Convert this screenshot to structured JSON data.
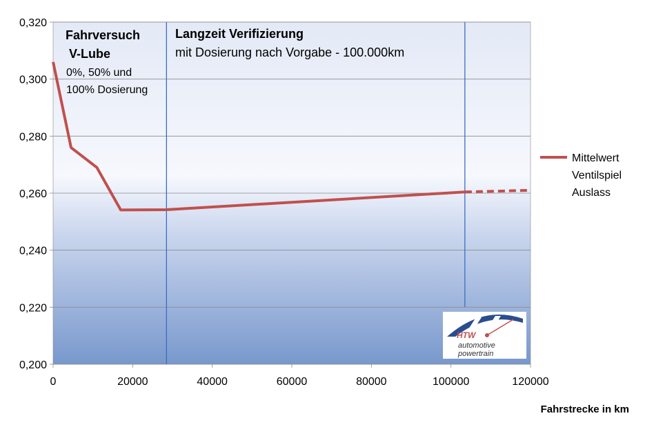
{
  "chart_data": {
    "type": "line",
    "xlabel": "Fahrstrecke in km",
    "ylabel": "",
    "xlim": [
      0,
      120000
    ],
    "ylim": [
      0.2,
      0.32
    ],
    "x_ticks": [
      0,
      20000,
      40000,
      60000,
      80000,
      100000,
      120000
    ],
    "x_tick_labels": [
      "0",
      "20000",
      "40000",
      "60000",
      "80000",
      "100000",
      "120000"
    ],
    "y_ticks": [
      0.2,
      0.22,
      0.24,
      0.26,
      0.28,
      0.3,
      0.32
    ],
    "y_tick_labels": [
      "0,200",
      "0,220",
      "0,240",
      "0,260",
      "0,280",
      "0,300",
      "0,320"
    ],
    "grid": "horizontal",
    "legend_position": "right",
    "series": [
      {
        "name": "Mittelwert Ventilspiel Auslass",
        "color": "#c0504d",
        "x": [
          0,
          4500,
          11000,
          17000,
          28500,
          103500
        ],
        "y": [
          0.306,
          0.276,
          0.269,
          0.2541,
          0.2542,
          0.2604
        ],
        "extrapolated": {
          "x": [
            103500,
            120000
          ],
          "y": [
            0.2604,
            0.261
          ]
        }
      }
    ],
    "legend_lines": [
      "Mittelwert",
      "Ventilspiel",
      "Auslass"
    ],
    "vertical_markers": [
      28500,
      103500
    ],
    "annotations": {
      "section1_title_line1": "Fahrversuch",
      "section1_title_line2": "V-Lube",
      "section1_sub_line1": "0%, 50% und",
      "section1_sub_line2": "100% Dosierung",
      "section2_title": "Langzeit Verifizierung",
      "section2_sub": "mit Dosierung nach Vorgabe - 100.000km"
    },
    "logo": {
      "mark": "HTW",
      "line1": "automotive",
      "line2": "powertrain"
    }
  }
}
